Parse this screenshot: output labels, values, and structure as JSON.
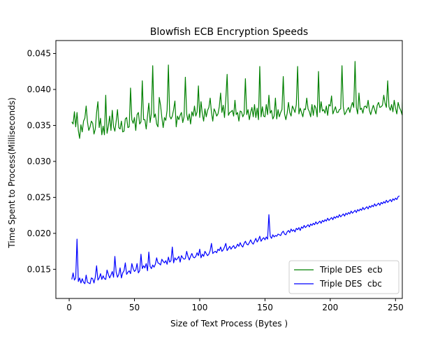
{
  "chart_data": {
    "type": "line",
    "title": "Blowfish ECB Encryption Speeds",
    "xlabel": "Size of Text Process (Bytes )",
    "ylabel": "Time Spent to Process(Milliseconds)",
    "xlim": [
      -10.2,
      255.2
    ],
    "ylim": [
      0.01095,
      0.0468
    ],
    "xticks": [
      0,
      50,
      100,
      150,
      200,
      250
    ],
    "yticks": [
      0.015,
      0.02,
      0.025,
      0.03,
      0.035,
      0.04,
      0.045
    ],
    "x_tick_labels": [
      "0",
      "50",
      "100",
      "150",
      "200",
      "250"
    ],
    "y_tick_labels": [
      "0.015",
      "0.020",
      "0.025",
      "0.030",
      "0.035",
      "0.040",
      "0.045"
    ],
    "grid": false,
    "legend_position": "lower-right",
    "x_start": 2,
    "x_step": 1,
    "series": [
      {
        "name": "Triple DES  ecb",
        "color": "#008000",
        "values": [
          0.0355,
          0.0352,
          0.0369,
          0.0348,
          0.0368,
          0.0343,
          0.0332,
          0.0351,
          0.0341,
          0.0356,
          0.036,
          0.0377,
          0.0355,
          0.0343,
          0.0348,
          0.0356,
          0.0353,
          0.0338,
          0.0345,
          0.0368,
          0.0383,
          0.0347,
          0.036,
          0.0337,
          0.0349,
          0.0337,
          0.0392,
          0.0339,
          0.0349,
          0.0363,
          0.0343,
          0.0371,
          0.0348,
          0.0342,
          0.0356,
          0.0372,
          0.0347,
          0.0345,
          0.0356,
          0.0341,
          0.0342,
          0.0359,
          0.0361,
          0.0347,
          0.0348,
          0.0402,
          0.0358,
          0.0353,
          0.0361,
          0.0343,
          0.0365,
          0.0368,
          0.0352,
          0.0355,
          0.0412,
          0.0358,
          0.0358,
          0.0345,
          0.0363,
          0.0381,
          0.0354,
          0.0367,
          0.0433,
          0.0361,
          0.0366,
          0.0352,
          0.0348,
          0.0389,
          0.0378,
          0.0361,
          0.0347,
          0.0361,
          0.0357,
          0.0371,
          0.0434,
          0.0363,
          0.0359,
          0.0363,
          0.0372,
          0.0384,
          0.0348,
          0.0363,
          0.0358,
          0.0364,
          0.0368,
          0.0354,
          0.0362,
          0.0417,
          0.0366,
          0.0357,
          0.0366,
          0.0352,
          0.0369,
          0.0363,
          0.0377,
          0.0363,
          0.0369,
          0.0405,
          0.0361,
          0.0383,
          0.0366,
          0.0356,
          0.0373,
          0.0362,
          0.0371,
          0.0375,
          0.0388,
          0.0368,
          0.0356,
          0.0373,
          0.0369,
          0.0363,
          0.0366,
          0.0376,
          0.0395,
          0.0368,
          0.0378,
          0.0361,
          0.0387,
          0.0421,
          0.0364,
          0.0368,
          0.0369,
          0.0371,
          0.0363,
          0.0385,
          0.0365,
          0.0368,
          0.0356,
          0.037,
          0.0369,
          0.0362,
          0.0366,
          0.0415,
          0.0365,
          0.0372,
          0.0358,
          0.0368,
          0.0375,
          0.0362,
          0.0379,
          0.0361,
          0.0374,
          0.0358,
          0.0432,
          0.0362,
          0.0376,
          0.0363,
          0.0362,
          0.0379,
          0.0365,
          0.0392,
          0.0367,
          0.0371,
          0.0359,
          0.0363,
          0.0388,
          0.0359,
          0.0372,
          0.0362,
          0.0368,
          0.0372,
          0.0418,
          0.0366,
          0.0358,
          0.0367,
          0.0382,
          0.0368,
          0.0363,
          0.0377,
          0.0373,
          0.0368,
          0.0379,
          0.0432,
          0.0366,
          0.0374,
          0.0368,
          0.0362,
          0.0373,
          0.0372,
          0.0388,
          0.0373,
          0.0369,
          0.0362,
          0.0379,
          0.0364,
          0.0378,
          0.0374,
          0.0362,
          0.0425,
          0.0368,
          0.0383,
          0.037,
          0.0372,
          0.0367,
          0.0377,
          0.0364,
          0.0379,
          0.0377,
          0.0391,
          0.0366,
          0.0371,
          0.0376,
          0.0368,
          0.0368,
          0.0372,
          0.0373,
          0.0433,
          0.0376,
          0.0365,
          0.0368,
          0.0372,
          0.0375,
          0.0368,
          0.0376,
          0.0382,
          0.0375,
          0.0439,
          0.0375,
          0.0366,
          0.0395,
          0.0372,
          0.0374,
          0.0367,
          0.0376,
          0.0377,
          0.0374,
          0.0385,
          0.0371,
          0.0365,
          0.0372,
          0.0378,
          0.0372,
          0.0366,
          0.0378,
          0.0382,
          0.0375,
          0.0376,
          0.0378,
          0.0392,
          0.0381,
          0.0375,
          0.0412,
          0.0376,
          0.0371,
          0.0379,
          0.0369,
          0.0385,
          0.0374,
          0.0366,
          0.0382,
          0.0375,
          0.0371,
          0.0365,
          0.0451
        ]
      },
      {
        "name": "Triple DES  cbc",
        "color": "#0000ff",
        "values": [
          0.0136,
          0.0145,
          0.0135,
          0.0138,
          0.0192,
          0.0133,
          0.0138,
          0.0131,
          0.0137,
          0.0132,
          0.013,
          0.0142,
          0.0132,
          0.0131,
          0.013,
          0.0138,
          0.0137,
          0.0131,
          0.0139,
          0.0155,
          0.0135,
          0.0138,
          0.0144,
          0.0136,
          0.0141,
          0.0137,
          0.0136,
          0.0149,
          0.0143,
          0.0138,
          0.0142,
          0.0147,
          0.0139,
          0.0168,
          0.0146,
          0.0139,
          0.0143,
          0.0152,
          0.0138,
          0.0145,
          0.0148,
          0.0159,
          0.0143,
          0.0146,
          0.0148,
          0.0144,
          0.0158,
          0.0151,
          0.0147,
          0.0149,
          0.0158,
          0.0145,
          0.0148,
          0.0171,
          0.0151,
          0.0155,
          0.0152,
          0.0158,
          0.0148,
          0.0174,
          0.0154,
          0.0151,
          0.0156,
          0.0153,
          0.0157,
          0.0166,
          0.0159,
          0.0158,
          0.0156,
          0.0164,
          0.0161,
          0.0159,
          0.0162,
          0.0157,
          0.0167,
          0.016,
          0.0162,
          0.0181,
          0.0159,
          0.0166,
          0.0163,
          0.0165,
          0.0168,
          0.016,
          0.0169,
          0.0166,
          0.0164,
          0.0165,
          0.0175,
          0.0168,
          0.0163,
          0.0168,
          0.0172,
          0.0167,
          0.0166,
          0.0168,
          0.0173,
          0.0169,
          0.0178,
          0.0166,
          0.0171,
          0.0168,
          0.0175,
          0.0172,
          0.0169,
          0.0171,
          0.0176,
          0.0186,
          0.0172,
          0.0174,
          0.0175,
          0.0173,
          0.0178,
          0.0176,
          0.0181,
          0.0175,
          0.0177,
          0.0181,
          0.0186,
          0.0176,
          0.0179,
          0.0182,
          0.0178,
          0.0181,
          0.0183,
          0.0179,
          0.0181,
          0.0185,
          0.0182,
          0.0187,
          0.0183,
          0.0181,
          0.0186,
          0.0189,
          0.0185,
          0.0184,
          0.0187,
          0.0191,
          0.0187,
          0.0185,
          0.0189,
          0.0193,
          0.0188,
          0.0191,
          0.0196,
          0.0189,
          0.0192,
          0.0194,
          0.0191,
          0.0195,
          0.0192,
          0.0226,
          0.0196,
          0.0193,
          0.0198,
          0.0195,
          0.0197,
          0.0196,
          0.0199,
          0.0198,
          0.0197,
          0.0201,
          0.0203,
          0.0199,
          0.0198,
          0.0202,
          0.0204,
          0.0201,
          0.0206,
          0.0203,
          0.0205,
          0.0202,
          0.0207,
          0.0205,
          0.0208,
          0.0204,
          0.0209,
          0.0207,
          0.0211,
          0.0208,
          0.021,
          0.0212,
          0.0209,
          0.0213,
          0.0211,
          0.0214,
          0.0212,
          0.0216,
          0.0213,
          0.0215,
          0.0217,
          0.0214,
          0.0218,
          0.0216,
          0.0219,
          0.0217,
          0.0221,
          0.0218,
          0.022,
          0.0222,
          0.0219,
          0.0223,
          0.0221,
          0.0224,
          0.0222,
          0.0226,
          0.0223,
          0.0225,
          0.0227,
          0.0224,
          0.0228,
          0.0226,
          0.0229,
          0.0227,
          0.0231,
          0.0228,
          0.023,
          0.0232,
          0.0229,
          0.0233,
          0.0231,
          0.0234,
          0.0232,
          0.0236,
          0.0233,
          0.0235,
          0.0237,
          0.0234,
          0.0238,
          0.0236,
          0.0239,
          0.0237,
          0.0241,
          0.0238,
          0.024,
          0.0242,
          0.0239,
          0.0243,
          0.0241,
          0.0244,
          0.0242,
          0.0246,
          0.0243,
          0.0245,
          0.0247,
          0.0244,
          0.0248,
          0.0246,
          0.0249,
          0.0247,
          0.0251,
          0.0252
        ]
      }
    ]
  }
}
